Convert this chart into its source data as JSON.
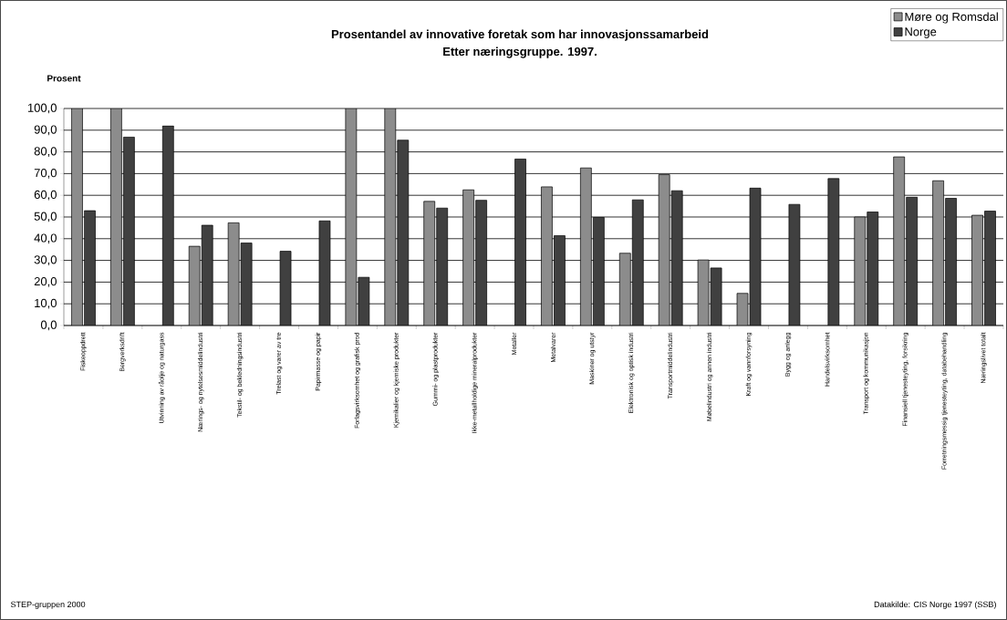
{
  "chart_data": {
    "type": "bar",
    "title": "Prosentandel av innovative foretak som har innovasjonssamarbeid",
    "subtitle": "Etter næringsgruppe. 1997.",
    "ylabel": "Prosent",
    "categories": [
      "Fiskeoppdrett",
      "Bergverksdrift",
      "Utvinning av råolje og naturgass",
      "Nærings- og nytelsesmiddelindustri",
      "Tekstil- og bekledningsindustri",
      "Trelast og varer av tre",
      "Papirmasse og papir",
      "Forlagsvirksomhet og grafisk prod",
      "Kjemikalier og kjemiske produkter",
      "Gummi- og plastprodukter",
      "Ikke-metallholdige mineralprodukter",
      "Metaller",
      "Metalvarer",
      "Maskiner og utstyr",
      "Elektronisk og optisk industri",
      "Transportmiddelindustri",
      "Møbelindustri og annen industri",
      "Kraft og vannforsyning",
      "Bygg og anlegg",
      "Handelsvirksomhet",
      "Transport og kommunikasjon",
      "Finansiell tjenesteyting, forsikring",
      "Forretningsmessig tjenesteyting, databehandling",
      "Næringslivet totalt"
    ],
    "series": [
      {
        "name": "Møre og Romsdal",
        "color": "#8c8c8c",
        "values": [
          100,
          100,
          null,
          36.5,
          47.3,
          null,
          null,
          100,
          100,
          57.2,
          62.5,
          null,
          63.9,
          72.6,
          33.3,
          69.5,
          30.2,
          14.8,
          null,
          null,
          50.0,
          77.7,
          66.7,
          50.8
        ]
      },
      {
        "name": "Norge",
        "color": "#404040",
        "values": [
          52.9,
          86.8,
          92.0,
          46.2,
          38.0,
          34.2,
          48.2,
          22.2,
          85.4,
          54.1,
          57.7,
          76.7,
          41.4,
          49.8,
          57.9,
          62.1,
          26.5,
          63.3,
          55.8,
          67.7,
          52.3,
          59.1,
          58.6,
          52.7
        ]
      }
    ],
    "ylim": [
      0,
      100
    ],
    "yticks": [
      {
        "value": 0,
        "label": "0,0"
      },
      {
        "value": 10,
        "label": "10,0"
      },
      {
        "value": 20,
        "label": "20,0"
      },
      {
        "value": 30,
        "label": "30,0"
      },
      {
        "value": 40,
        "label": "40,0"
      },
      {
        "value": 50,
        "label": "50,0"
      },
      {
        "value": 60,
        "label": "60,0"
      },
      {
        "value": 70,
        "label": "70,0"
      },
      {
        "value": 80,
        "label": "80,0"
      },
      {
        "value": 90,
        "label": "90,0"
      },
      {
        "value": 100,
        "label": "100,0"
      }
    ],
    "grid": "y",
    "legend": "top right",
    "annotations": [
      "STEP-gruppen 2000",
      "Datakilde: CIS Norge 1997 (SSB)"
    ]
  }
}
